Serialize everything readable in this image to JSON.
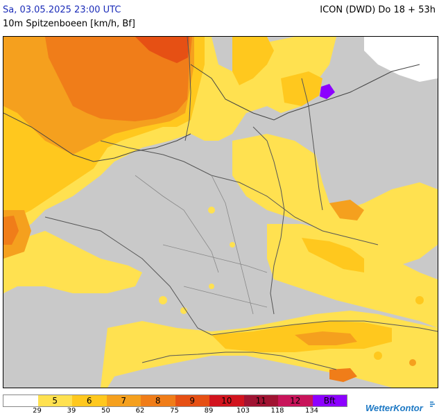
{
  "header": {
    "datetime": "Sa, 03.05.2025 23:00 UTC",
    "parameter": "10m Spitzenboeen [km/h, Bf]",
    "model_run": "ICON (DWD) Do 18 + 53h"
  },
  "legend": {
    "bins": [
      {
        "label": "",
        "color": "#ffffff"
      },
      {
        "label": "5",
        "color": "#ffe150"
      },
      {
        "label": "6",
        "color": "#ffc81e"
      },
      {
        "label": "7",
        "color": "#f5a01e"
      },
      {
        "label": "8",
        "color": "#f07d19"
      },
      {
        "label": "9",
        "color": "#e65014"
      },
      {
        "label": "10",
        "color": "#d2141e"
      },
      {
        "label": "11",
        "color": "#a01432"
      },
      {
        "label": "12",
        "color": "#c8145a"
      },
      {
        "label": "Bft",
        "color": "#8c00ff"
      }
    ],
    "ticks": [
      "29",
      "39",
      "50",
      "62",
      "75",
      "89",
      "103",
      "118",
      "134"
    ]
  },
  "brand": {
    "name": "WetterKontor"
  }
}
